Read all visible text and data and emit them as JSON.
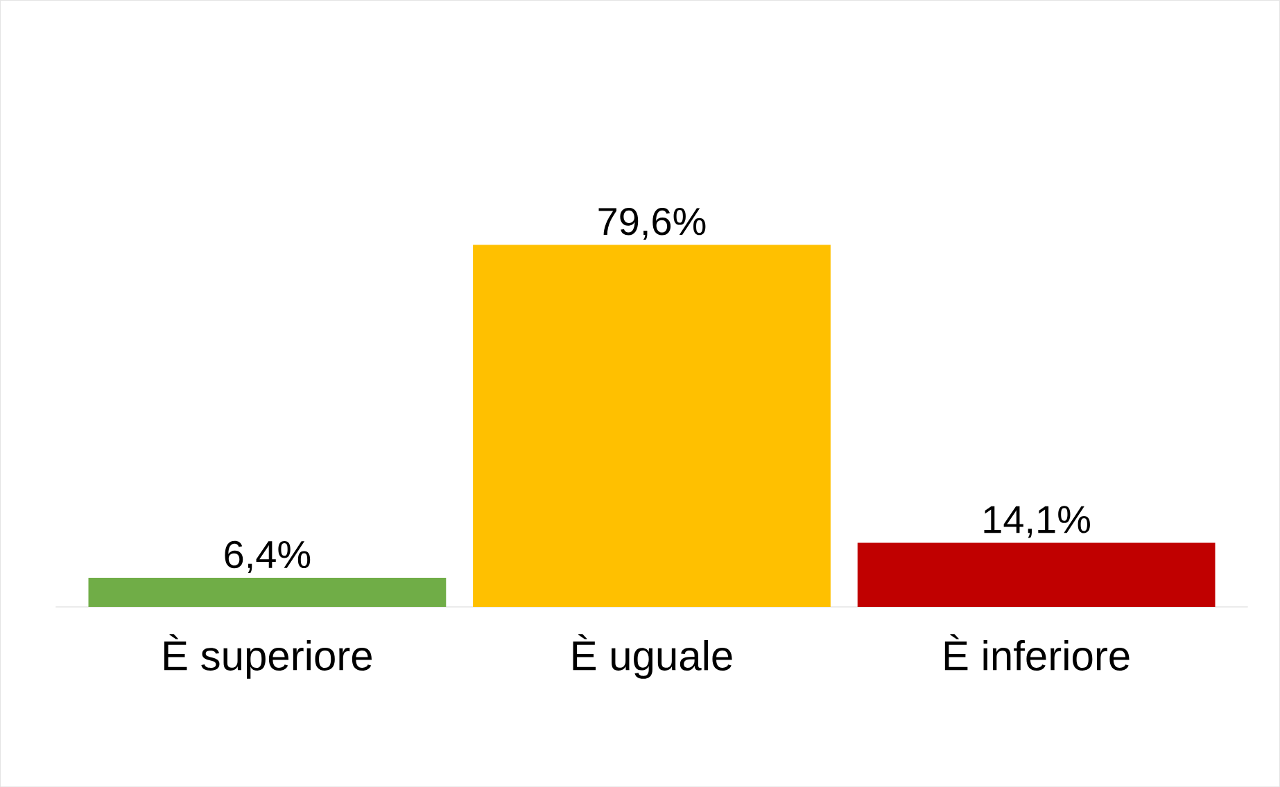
{
  "chart_data": {
    "type": "bar",
    "categories": [
      "È superiore",
      "È uguale",
      "È inferiore"
    ],
    "values": [
      6.4,
      79.6,
      14.1
    ],
    "colors": [
      "#70ad47",
      "#ffc000",
      "#c00000"
    ],
    "value_labels": [
      "6,4%",
      "79,6%",
      "14,1%"
    ],
    "data_labels": true
  }
}
